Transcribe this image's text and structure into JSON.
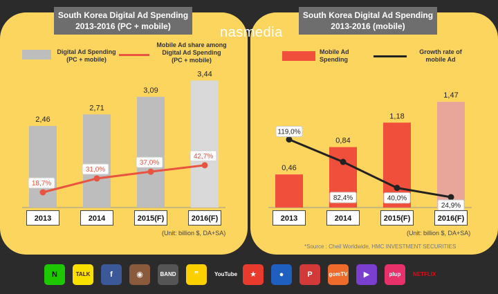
{
  "brand": {
    "name": "nasmedia"
  },
  "left_chart": {
    "title_line1": "South Korea Digital Ad Spending",
    "title_line2": "2013-2016 (PC + mobile)",
    "legend_bar": "Digital Ad Spending\n(PC + mobile)",
    "legend_line": "Mobile Ad share among\nDigital Ad Spending\n(PC + mobile)",
    "unit": "(Unit: billion $, DA+SA)"
  },
  "right_chart": {
    "title_line1": "South Korea Digital Ad Spending",
    "title_line2": "2013-2016 (mobile)",
    "legend_bar": "Mobile Ad\nSpending",
    "legend_line": "Growth rate of\nmobile Ad",
    "unit": "(Unit: billion $, DA+SA)",
    "source": "*Source : Cheil Worldwide, HMC INVESTMENT SECURITIES"
  },
  "chart_data": [
    {
      "type": "bar",
      "title": "South Korea Digital Ad Spending 2013-2016 (PC + mobile)",
      "categories": [
        "2013",
        "2014",
        "2015(F)",
        "2016(F)"
      ],
      "series": [
        {
          "name": "Digital Ad Spending (PC + mobile)",
          "type": "bar",
          "values": [
            2.46,
            2.71,
            3.09,
            3.44
          ],
          "labels": [
            "2,46",
            "2,71",
            "3,09",
            "3,44"
          ]
        },
        {
          "name": "Mobile Ad share among Digital Ad Spending (PC + mobile)",
          "type": "line",
          "values": [
            18.7,
            31.0,
            37.0,
            42.7
          ],
          "labels": [
            "18,7%",
            "31,0%",
            "37,0%",
            "42,7%"
          ]
        }
      ],
      "ylabel": "",
      "xlabel": "",
      "colors": {
        "bar": "#bdbdbd",
        "bar_last": "#d9d9d9",
        "line": "#e8543f"
      }
    },
    {
      "type": "bar",
      "title": "South Korea Digital Ad Spending 2013-2016 (mobile)",
      "categories": [
        "2013",
        "2014",
        "2015(F)",
        "2016(F)"
      ],
      "series": [
        {
          "name": "Mobile Ad Spending",
          "type": "bar",
          "values": [
            0.46,
            0.84,
            1.18,
            1.47
          ],
          "labels": [
            "0,46",
            "0,84",
            "1,18",
            "1,47"
          ]
        },
        {
          "name": "Growth rate of mobile Ad",
          "type": "line",
          "values": [
            119.0,
            82.4,
            40.0,
            24.9
          ],
          "labels": [
            "119,0%",
            "82,4%",
            "40,0%",
            "24,9%"
          ]
        }
      ],
      "ylabel": "",
      "xlabel": "",
      "colors": {
        "bar": "#f04f3c",
        "bar_last": "#e8a69b",
        "line": "#222222"
      }
    }
  ],
  "apps": [
    {
      "name": "Naver",
      "text": "N",
      "color": "#1ec800",
      "fg": "#111"
    },
    {
      "name": "KakaoTalk",
      "text": "TALK",
      "color": "#f9e000",
      "fg": "#3c1e1e"
    },
    {
      "name": "Facebook",
      "text": "f",
      "color": "#3b5998",
      "fg": "#fff"
    },
    {
      "name": "Instagram",
      "text": "◉",
      "color": "#8a5a3c",
      "fg": "#fff"
    },
    {
      "name": "Band",
      "text": "BAND",
      "color": "#555555",
      "fg": "#fff"
    },
    {
      "name": "KakaoStory",
      "text": "❞",
      "color": "#fbd000",
      "fg": "#fff"
    },
    {
      "name": "YouTube",
      "text": "YouTube",
      "color": "#2b2b2b",
      "fg": "#fff"
    },
    {
      "name": "App8",
      "text": "★",
      "color": "#e83b2e",
      "fg": "#fff"
    },
    {
      "name": "pooq",
      "text": "●",
      "color": "#1f5fbf",
      "fg": "#fff"
    },
    {
      "name": "App10",
      "text": "P",
      "color": "#d23a3a",
      "fg": "#fff"
    },
    {
      "name": "gomTV",
      "text": "gomTV",
      "color": "#ef6b2b",
      "fg": "#fff"
    },
    {
      "name": "App12",
      "text": "▶",
      "color": "#7b3fcf",
      "fg": "#fff"
    },
    {
      "name": "plup",
      "text": "plup",
      "color": "#e8306b",
      "fg": "#fff"
    },
    {
      "name": "Netflix",
      "text": "NETFLIX",
      "color": "#2b2b2b",
      "fg": "#e50914"
    }
  ]
}
